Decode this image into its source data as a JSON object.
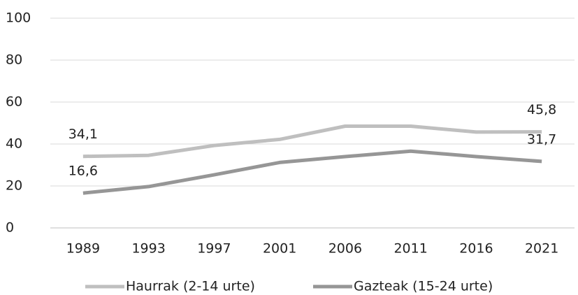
{
  "chart_data": {
    "type": "line",
    "categories": [
      "1989",
      "1993",
      "1997",
      "2001",
      "2006",
      "2011",
      "2016",
      "2021"
    ],
    "series": [
      {
        "name": "Haurrak (2-14 urte)",
        "color": "#bfbfbf",
        "values": [
          34.1,
          34.6,
          39.3,
          42.2,
          48.5,
          48.5,
          45.7,
          45.8
        ],
        "value_labels": [
          "34,1",
          null,
          null,
          null,
          null,
          null,
          null,
          "45,8"
        ]
      },
      {
        "name": "Gazteak (15-24 urte)",
        "color": "#969696",
        "values": [
          16.6,
          19.7,
          25.3,
          31.2,
          34.0,
          36.6,
          34.0,
          31.7
        ],
        "value_labels": [
          "16,6",
          null,
          null,
          null,
          null,
          null,
          null,
          "31,7"
        ]
      }
    ],
    "ylim": [
      0,
      100
    ],
    "yticks": [
      0,
      20,
      40,
      60,
      80,
      100
    ],
    "grid": true,
    "legend": "bottom"
  }
}
